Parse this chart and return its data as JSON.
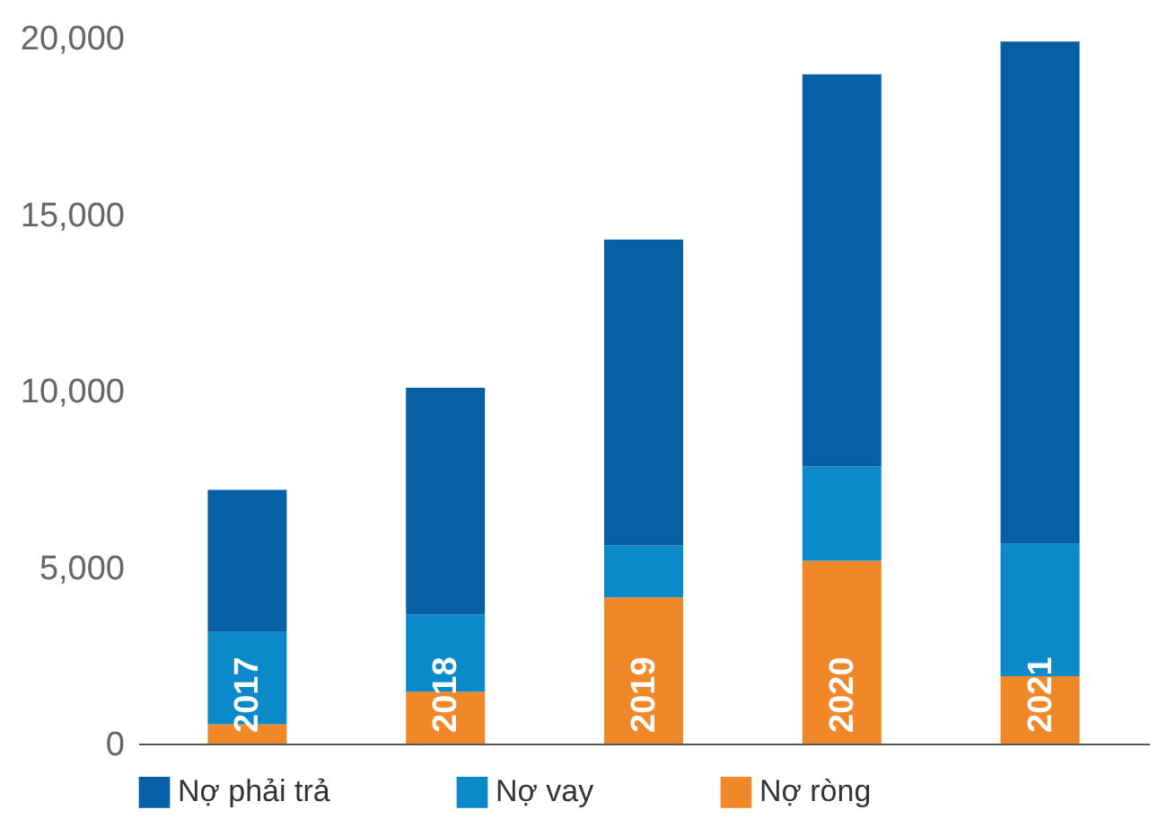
{
  "chart_data": {
    "type": "bar",
    "stacked": true,
    "categories": [
      "2017",
      "2018",
      "2019",
      "2020",
      "2021"
    ],
    "series": [
      {
        "name": "Nợ ròng",
        "color": "#f0882a",
        "values": [
          550,
          1470,
          4140,
          5180,
          1910
        ]
      },
      {
        "name": "Nợ vay",
        "color": "#0a8ac8",
        "values": [
          2610,
          2180,
          1470,
          2670,
          3760
        ]
      },
      {
        "name": "Nợ phải trả",
        "color": "#075fa6",
        "values": [
          4030,
          6430,
          8670,
          11110,
          14220
        ]
      }
    ],
    "ylim": [
      0,
      20000
    ],
    "yticks": [
      0,
      {
        "value": 5000,
        "label": "5,000"
      },
      {
        "value": 10000,
        "label": "10,000"
      },
      {
        "value": 15000,
        "label": "15,000"
      },
      {
        "value": 20000,
        "label": "20,000"
      }
    ],
    "grid": false,
    "legend": "bottom",
    "tick_labels": "y"
  }
}
